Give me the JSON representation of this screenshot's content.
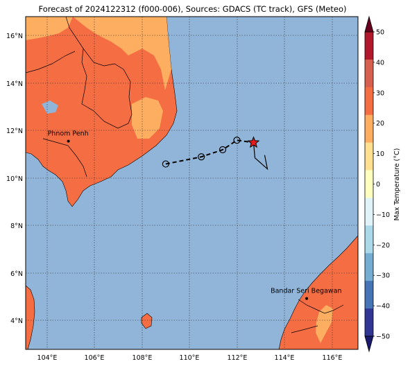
{
  "title": "Forecast of 2024122312 (f000-006), Sources: GDACS (TC track), GFS (Meteo)",
  "map": {
    "lon_labels": [
      "104°E",
      "106°E",
      "108°E",
      "110°E",
      "112°E",
      "114°E",
      "116°E"
    ],
    "lat_labels": [
      "16°N",
      "14°N",
      "12°N",
      "10°N",
      "8°N",
      "6°N",
      "4°N"
    ],
    "cities": [
      {
        "name": "Phnom Penh",
        "lon": 104.9,
        "lat": 11.56
      },
      {
        "name": "Bandar Seri Begawan",
        "lon": 114.94,
        "lat": 4.94
      }
    ],
    "track": [
      {
        "lon": 109.0,
        "lat": 10.6
      },
      {
        "lon": 110.5,
        "lat": 10.9
      },
      {
        "lon": 111.4,
        "lat": 11.2
      },
      {
        "lon": 112.0,
        "lat": 11.6
      },
      {
        "lon": 112.7,
        "lat": 11.5
      }
    ],
    "current_position": {
      "lon": 112.7,
      "lat": 11.5
    },
    "colors": {
      "ocean": "#91b5d9",
      "land_hot": "#f46d43",
      "land_warm": "#fdae61",
      "track": "#000000",
      "star": "#e41a1c"
    }
  },
  "colorbar": {
    "label": "Max Temperature (°C)",
    "ticks": [
      "50",
      "40",
      "30",
      "20",
      "10",
      "0",
      "−10",
      "−20",
      "−30",
      "−40",
      "−50"
    ],
    "colors": [
      "#67001f",
      "#b2182b",
      "#d6604d",
      "#f46d43",
      "#fdae61",
      "#fee090",
      "#ffffbf",
      "#e0f3f8",
      "#abd9e9",
      "#74add1",
      "#4575b4",
      "#313695",
      "#1a1a6e"
    ]
  }
}
